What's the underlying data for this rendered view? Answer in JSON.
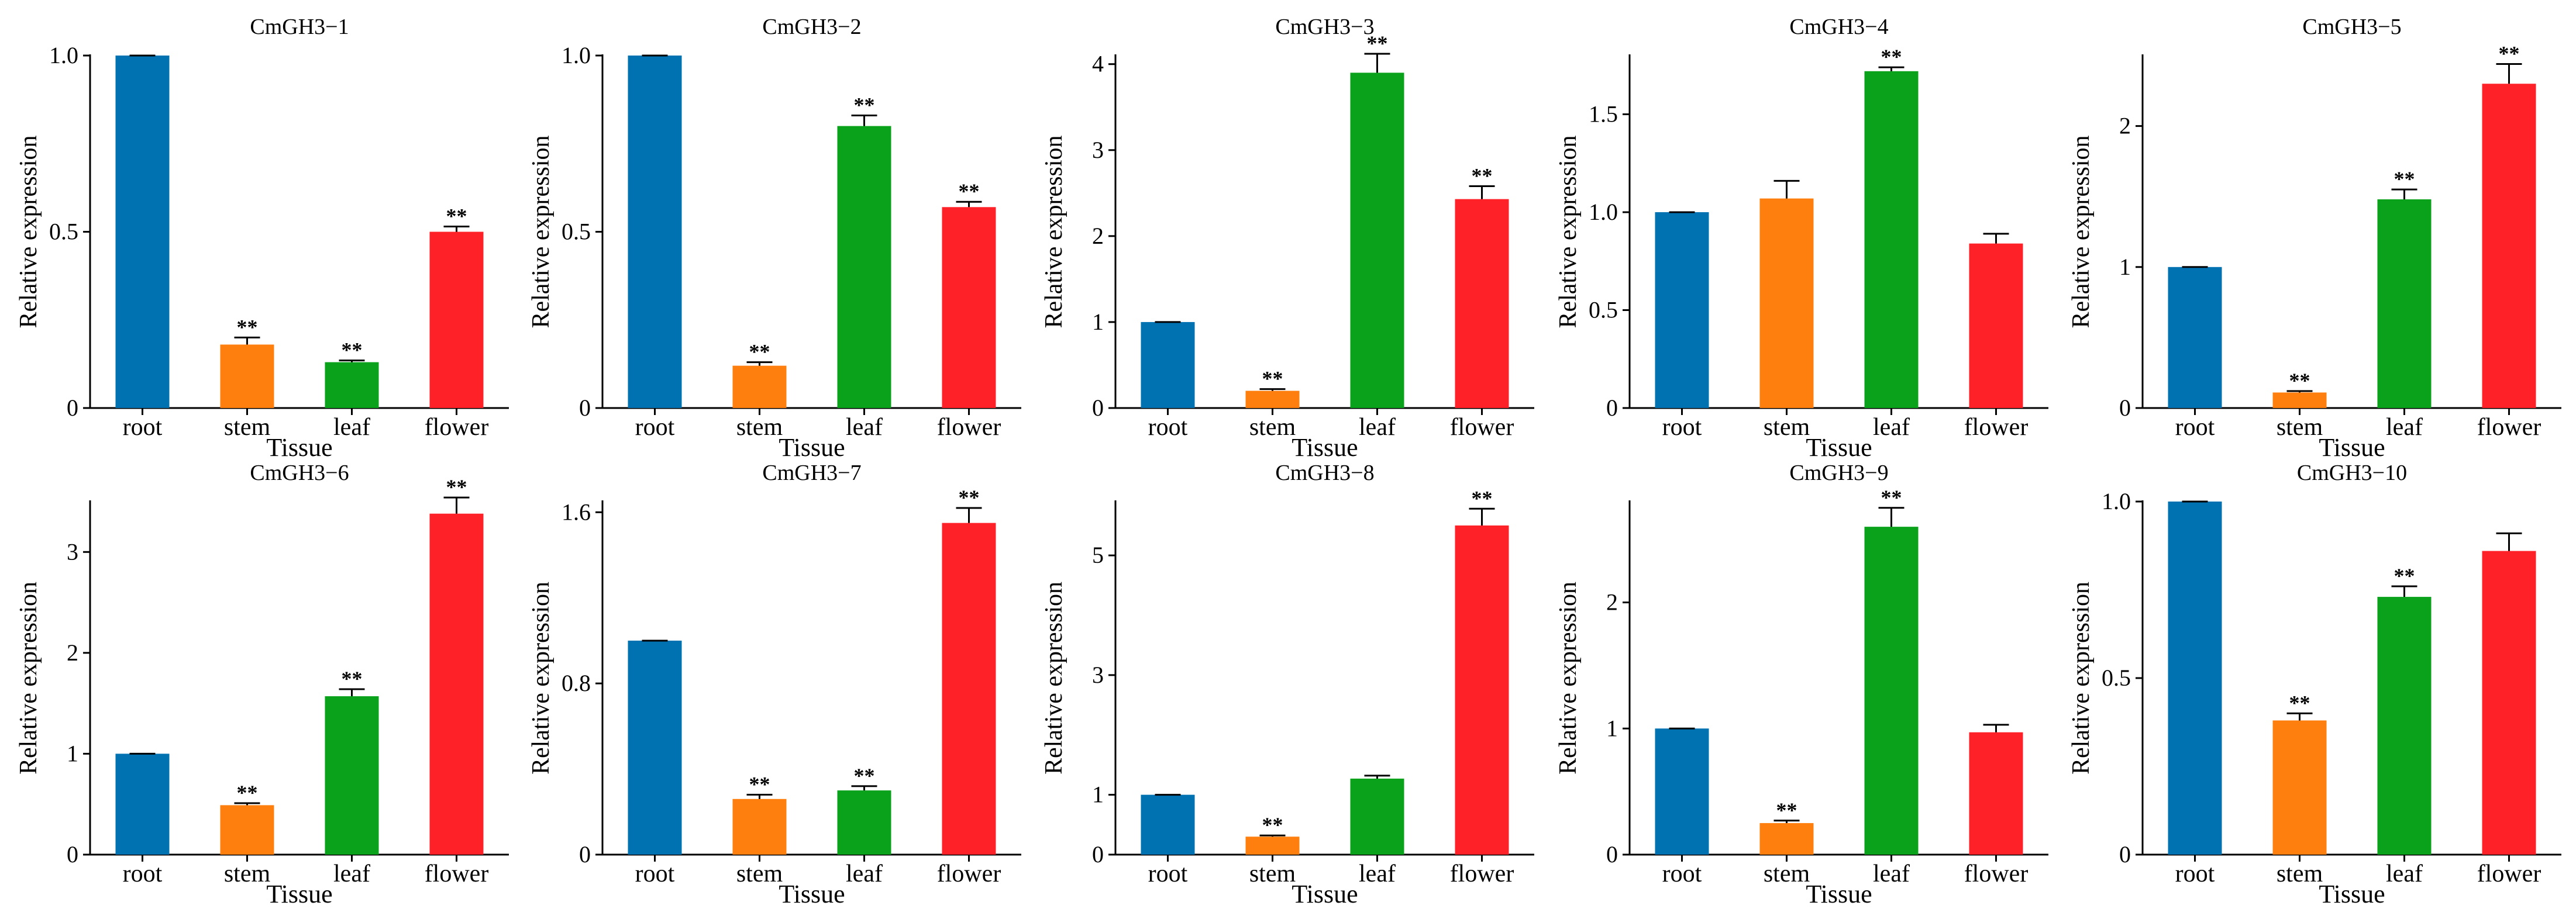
{
  "colors": {
    "root": "#0072b2",
    "stem": "#ff7f0e",
    "leaf": "#09a21a",
    "flower": "#ff2128"
  },
  "chart_data": [
    {
      "type": "bar",
      "title": "CmGH3−1",
      "xlabel": "Tissue",
      "ylabel": "Relative expression",
      "categories": [
        "root",
        "stem",
        "leaf",
        "flower"
      ],
      "values": [
        1.0,
        0.18,
        0.13,
        0.5
      ],
      "errors": [
        0.0,
        0.02,
        0.005,
        0.015
      ],
      "significance": [
        "",
        "**",
        "**",
        "**"
      ],
      "ylim": [
        0,
        1.0
      ],
      "yticks": [
        0,
        0.5,
        1.0
      ],
      "ytick_labels": [
        "0",
        "0.5",
        "1.0"
      ]
    },
    {
      "type": "bar",
      "title": "CmGH3−2",
      "xlabel": "Tissue",
      "ylabel": "Relative expression",
      "categories": [
        "root",
        "stem",
        "leaf",
        "flower"
      ],
      "values": [
        1.0,
        0.12,
        0.8,
        0.57
      ],
      "errors": [
        0.0,
        0.01,
        0.03,
        0.015
      ],
      "significance": [
        "",
        "**",
        "**",
        "**"
      ],
      "ylim": [
        0,
        1.0
      ],
      "yticks": [
        0,
        0.5,
        1.0
      ],
      "ytick_labels": [
        "0",
        "0.5",
        "1.0"
      ]
    },
    {
      "type": "bar",
      "title": "CmGH3−3",
      "xlabel": "Tissue",
      "ylabel": "Relative expression",
      "categories": [
        "root",
        "stem",
        "leaf",
        "flower"
      ],
      "values": [
        1.0,
        0.2,
        3.9,
        2.43
      ],
      "errors": [
        0.0,
        0.02,
        0.22,
        0.15
      ],
      "significance": [
        "",
        "**",
        "**",
        "**"
      ],
      "ylim": [
        0,
        4.1
      ],
      "yticks": [
        0,
        1,
        2,
        3,
        4
      ],
      "ytick_labels": [
        "0",
        "1",
        "2",
        "3",
        "4"
      ]
    },
    {
      "type": "bar",
      "title": "CmGH3−4",
      "xlabel": "Tissue",
      "ylabel": "Relative expression",
      "categories": [
        "root",
        "stem",
        "leaf",
        "flower"
      ],
      "values": [
        1.0,
        1.07,
        1.72,
        0.84
      ],
      "errors": [
        0.0,
        0.09,
        0.02,
        0.05
      ],
      "significance": [
        "",
        "",
        "**",
        ""
      ],
      "ylim": [
        0,
        1.8
      ],
      "yticks": [
        0,
        0.5,
        1.0,
        1.5
      ],
      "ytick_labels": [
        "0",
        "0.5",
        "1.0",
        "1.5"
      ]
    },
    {
      "type": "bar",
      "title": "CmGH3−5",
      "xlabel": "Tissue",
      "ylabel": "Relative expression",
      "categories": [
        "root",
        "stem",
        "leaf",
        "flower"
      ],
      "values": [
        1.0,
        0.11,
        1.48,
        2.3
      ],
      "errors": [
        0.0,
        0.01,
        0.07,
        0.14
      ],
      "significance": [
        "",
        "**",
        "**",
        "**"
      ],
      "ylim": [
        0,
        2.5
      ],
      "yticks": [
        0,
        1,
        2
      ],
      "ytick_labels": [
        "0",
        "1",
        "2"
      ]
    },
    {
      "type": "bar",
      "title": "CmGH3−6",
      "xlabel": "Tissue",
      "ylabel": "Relative expression",
      "categories": [
        "root",
        "stem",
        "leaf",
        "flower"
      ],
      "values": [
        1.0,
        0.49,
        1.57,
        3.38
      ],
      "errors": [
        0.0,
        0.02,
        0.07,
        0.16
      ],
      "significance": [
        "",
        "**",
        "**",
        "**"
      ],
      "ylim": [
        0,
        3.5
      ],
      "yticks": [
        0,
        1,
        2,
        3
      ],
      "ytick_labels": [
        "0",
        "1",
        "2",
        "3"
      ]
    },
    {
      "type": "bar",
      "title": "CmGH3−7",
      "xlabel": "Tissue",
      "ylabel": "Relative expression",
      "categories": [
        "root",
        "stem",
        "leaf",
        "flower"
      ],
      "values": [
        1.0,
        0.26,
        0.3,
        1.55
      ],
      "errors": [
        0.0,
        0.02,
        0.02,
        0.07
      ],
      "significance": [
        "",
        "**",
        "**",
        "**"
      ],
      "ylim": [
        0,
        1.65
      ],
      "yticks": [
        0,
        0.8,
        1.6
      ],
      "ytick_labels": [
        "0",
        "0.8",
        "1.6"
      ]
    },
    {
      "type": "bar",
      "title": "CmGH3−8",
      "xlabel": "Tissue",
      "ylabel": "Relative expression",
      "categories": [
        "root",
        "stem",
        "leaf",
        "flower"
      ],
      "values": [
        1.0,
        0.3,
        1.27,
        5.5
      ],
      "errors": [
        0.0,
        0.02,
        0.05,
        0.28
      ],
      "significance": [
        "",
        "**",
        "",
        "**"
      ],
      "ylim": [
        0,
        5.9
      ],
      "yticks": [
        0,
        1,
        3,
        5
      ],
      "ytick_labels": [
        "0",
        "1",
        "3",
        "5"
      ]
    },
    {
      "type": "bar",
      "title": "CmGH3−9",
      "xlabel": "Tissue",
      "ylabel": "Relative expression",
      "categories": [
        "root",
        "stem",
        "leaf",
        "flower"
      ],
      "values": [
        1.0,
        0.25,
        2.6,
        0.97
      ],
      "errors": [
        0.0,
        0.02,
        0.15,
        0.06
      ],
      "significance": [
        "",
        "**",
        "**",
        ""
      ],
      "ylim": [
        0,
        2.8
      ],
      "yticks": [
        0,
        1,
        2
      ],
      "ytick_labels": [
        "0",
        "1",
        "2"
      ]
    },
    {
      "type": "bar",
      "title": "CmGH3−10",
      "xlabel": "Tissue",
      "ylabel": "Relative expression",
      "categories": [
        "root",
        "stem",
        "leaf",
        "flower"
      ],
      "values": [
        1.0,
        0.38,
        0.73,
        0.86
      ],
      "errors": [
        0.0,
        0.02,
        0.03,
        0.05
      ],
      "significance": [
        "",
        "**",
        "**",
        ""
      ],
      "ylim": [
        0,
        1.0
      ],
      "yticks": [
        0,
        0.5,
        1.0
      ],
      "ytick_labels": [
        "0",
        "0.5",
        "1.0"
      ]
    }
  ]
}
